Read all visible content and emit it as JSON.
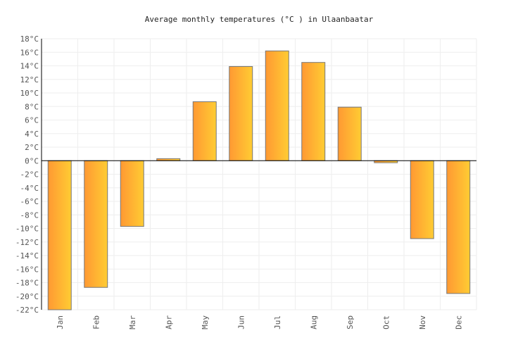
{
  "chart_data": {
    "type": "bar",
    "title": "Average monthly temperatures (°C ) in Ulaanbaatar",
    "xlabel": "",
    "ylabel": "",
    "categories": [
      "Jan",
      "Feb",
      "Mar",
      "Apr",
      "May",
      "Jun",
      "Jul",
      "Aug",
      "Sep",
      "Oct",
      "Nov",
      "Dec"
    ],
    "values": [
      -22.0,
      -18.7,
      -9.7,
      0.3,
      8.7,
      13.9,
      16.2,
      14.5,
      7.9,
      -0.3,
      -11.5,
      -19.6
    ],
    "ylim": [
      -22,
      18
    ],
    "ytick_step": 2,
    "ytick_unit": "°C",
    "grid": true,
    "colors": {
      "bar_start": "#ff9933",
      "bar_end": "#ffcc33",
      "bar_border": "#777777",
      "grid": "#eeeeee",
      "zero_line": "#000000"
    }
  }
}
